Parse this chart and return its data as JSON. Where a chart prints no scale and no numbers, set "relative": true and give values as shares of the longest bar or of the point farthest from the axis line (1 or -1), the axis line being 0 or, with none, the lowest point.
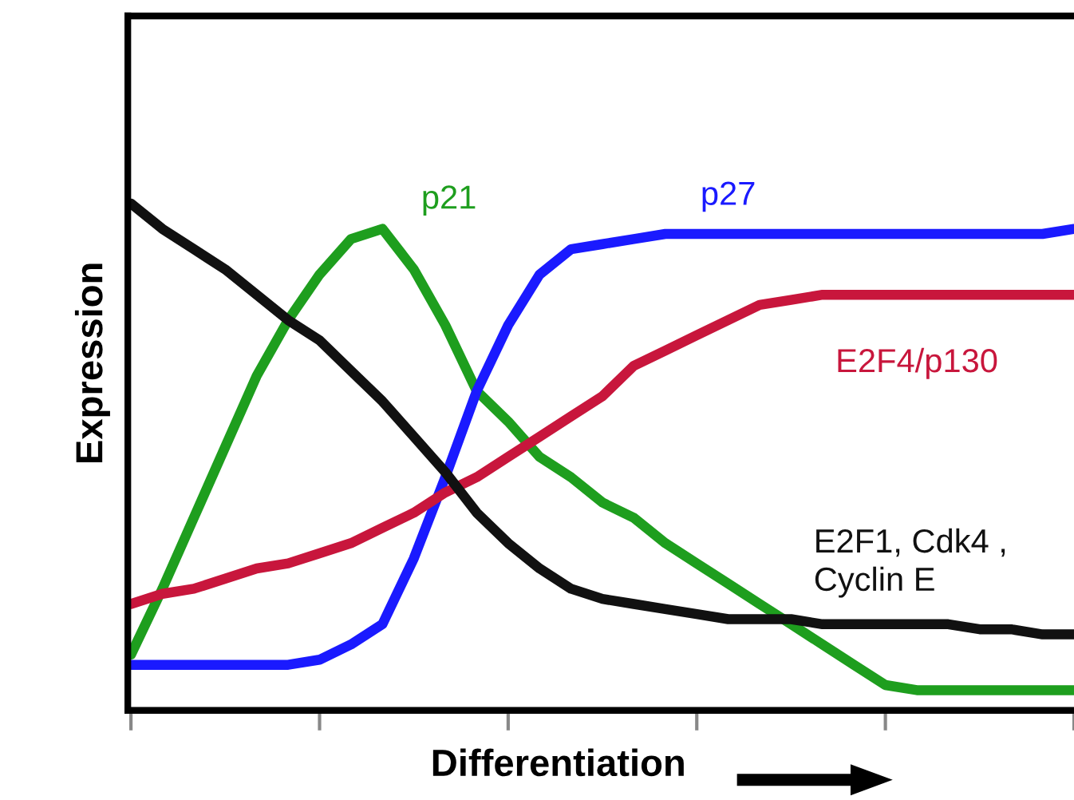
{
  "chart_data": {
    "type": "line",
    "relative": true,
    "xlabel": "Differentiation",
    "ylabel": "Expression",
    "legend": false,
    "grid": false,
    "marker": "none",
    "line_style": "solid",
    "categories": [
      null,
      null,
      null,
      null,
      null,
      null,
      null,
      null,
      null,
      null,
      null,
      null,
      null,
      null,
      null,
      null,
      null,
      null,
      null,
      null,
      null,
      null,
      null,
      null,
      null,
      null,
      null,
      null,
      null,
      null,
      null
    ],
    "series": [
      {
        "name": "p21",
        "color": "#1e9e1e",
        "values": [
          0.11,
          0.24,
          0.38,
          0.52,
          0.66,
          0.77,
          0.86,
          0.93,
          0.95,
          0.87,
          0.76,
          0.63,
          0.57,
          0.5,
          0.46,
          0.41,
          0.38,
          0.33,
          0.29,
          0.25,
          0.21,
          0.17,
          0.13,
          0.09,
          0.05,
          0.04,
          0.04,
          0.04,
          0.04,
          0.04,
          0.04
        ]
      },
      {
        "name": "p27",
        "color": "#1a1aff",
        "values": [
          0.09,
          0.09,
          0.09,
          0.09,
          0.09,
          0.09,
          0.1,
          0.13,
          0.17,
          0.3,
          0.46,
          0.63,
          0.76,
          0.86,
          0.91,
          0.92,
          0.93,
          0.94,
          0.94,
          0.94,
          0.94,
          0.94,
          0.94,
          0.94,
          0.94,
          0.94,
          0.94,
          0.94,
          0.94,
          0.94,
          0.95
        ]
      },
      {
        "name": "E2F4/p130",
        "color": "#c8163c",
        "values": [
          0.21,
          0.23,
          0.24,
          0.26,
          0.28,
          0.29,
          0.31,
          0.33,
          0.36,
          0.39,
          0.43,
          0.46,
          0.5,
          0.54,
          0.58,
          0.62,
          0.68,
          0.71,
          0.74,
          0.77,
          0.8,
          0.81,
          0.82,
          0.82,
          0.82,
          0.82,
          0.82,
          0.82,
          0.82,
          0.82,
          0.82
        ]
      },
      {
        "name": "E2F1, Cdk4 ,\nCyclin E",
        "color": "#111111",
        "values": [
          1.0,
          0.95,
          0.91,
          0.87,
          0.82,
          0.77,
          0.73,
          0.67,
          0.61,
          0.54,
          0.47,
          0.39,
          0.33,
          0.28,
          0.24,
          0.22,
          0.21,
          0.2,
          0.19,
          0.18,
          0.18,
          0.18,
          0.17,
          0.17,
          0.17,
          0.17,
          0.17,
          0.16,
          0.16,
          0.15,
          0.15
        ]
      }
    ]
  }
}
